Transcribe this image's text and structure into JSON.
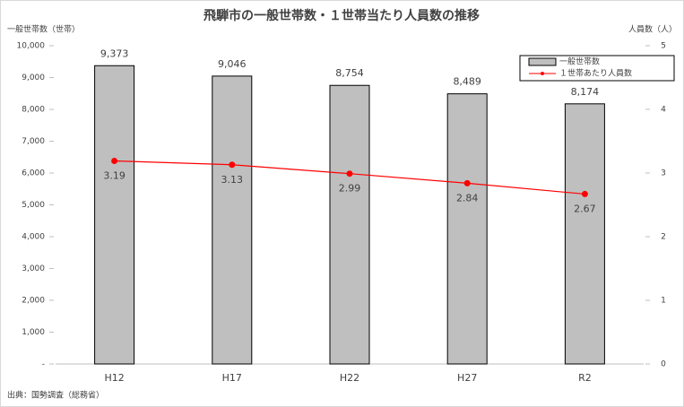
{
  "chart_data": {
    "type": "bar",
    "title": "飛騨市の一般世帯数・１世帯当たり人員数の推移",
    "y_label": "一般世帯数（世帯）",
    "y2_label": "人員数（人）",
    "source": "出典：国勢調査（総務省）",
    "categories": [
      "H12",
      "H17",
      "H22",
      "H27",
      "R2"
    ],
    "series": [
      {
        "name": "一般世帯数",
        "type": "bar",
        "color": "#bfbfbf",
        "values": [
          9373,
          9046,
          8754,
          8489,
          8174
        ],
        "value_labels": [
          "9,373",
          "9,046",
          "8,754",
          "8,489",
          "8,174"
        ]
      },
      {
        "name": "１世帯あたり人員数",
        "type": "line",
        "axis": "y2",
        "color": "#ff0000",
        "values": [
          3.19,
          3.13,
          2.99,
          2.84,
          2.67
        ]
      }
    ],
    "ylim": [
      0,
      10000
    ],
    "yticks": [
      {
        "value": 0,
        "label": "-"
      },
      {
        "value": 1000,
        "label": "1,000"
      },
      {
        "value": 2000,
        "label": "2,000"
      },
      {
        "value": 3000,
        "label": "3,000"
      },
      {
        "value": 4000,
        "label": "4,000"
      },
      {
        "value": 5000,
        "label": "5,000"
      },
      {
        "value": 6000,
        "label": "6,000"
      },
      {
        "value": 7000,
        "label": "7,000"
      },
      {
        "value": 8000,
        "label": "8,000"
      },
      {
        "value": 9000,
        "label": "9,000"
      },
      {
        "value": 10000,
        "label": "10,000"
      }
    ],
    "y2lim": [
      0,
      5
    ],
    "y2ticks": [
      0,
      1,
      2,
      3,
      4,
      5
    ],
    "legend": "upper right"
  }
}
